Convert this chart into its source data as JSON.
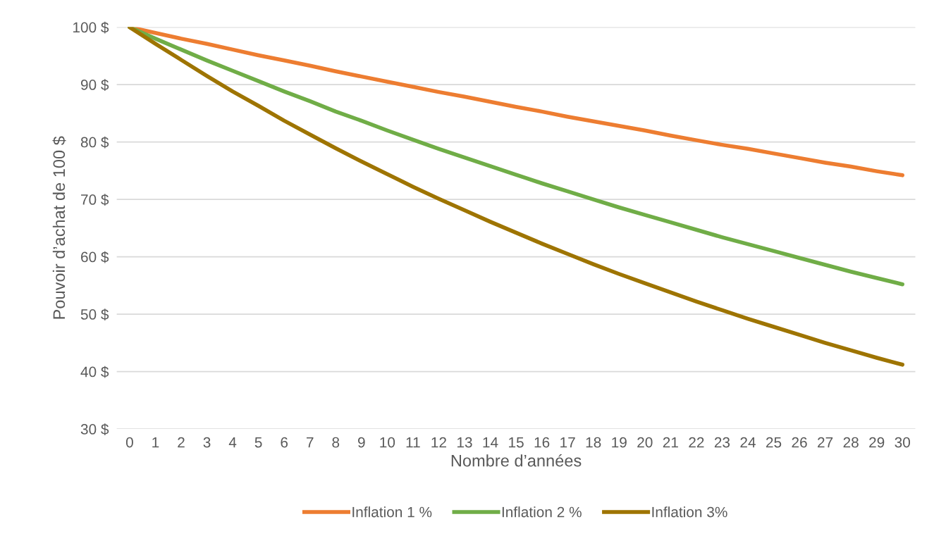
{
  "chart_data": {
    "type": "line",
    "xlabel": "Nombre d’années",
    "ylabel": "Pouvoir d’achat de 100 $",
    "categories": [
      "0",
      "1",
      "2",
      "3",
      "4",
      "5",
      "6",
      "7",
      "8",
      "9",
      "10",
      "11",
      "12",
      "13",
      "14",
      "15",
      "16",
      "17",
      "18",
      "19",
      "20",
      "21",
      "22",
      "23",
      "24",
      "25",
      "26",
      "27",
      "28",
      "29",
      "30"
    ],
    "series": [
      {
        "name": "Inflation 1 %",
        "color": "#ed7d31",
        "values": [
          100,
          99.0,
          98.0,
          97.1,
          96.1,
          95.1,
          94.2,
          93.3,
          92.3,
          91.4,
          90.5,
          89.6,
          88.7,
          87.9,
          87.0,
          86.1,
          85.3,
          84.4,
          83.6,
          82.8,
          82.0,
          81.1,
          80.3,
          79.5,
          78.8,
          78.0,
          77.2,
          76.4,
          75.7,
          74.9,
          74.2
        ]
      },
      {
        "name": "Inflation 2 %",
        "color": "#70ad47",
        "values": [
          100,
          98.0,
          96.1,
          94.2,
          92.4,
          90.6,
          88.8,
          87.1,
          85.3,
          83.7,
          82.0,
          80.4,
          78.8,
          77.3,
          75.8,
          74.3,
          72.8,
          71.4,
          70.0,
          68.6,
          67.3,
          66.0,
          64.7,
          63.4,
          62.2,
          61.0,
          59.8,
          58.6,
          57.4,
          56.3,
          55.2
        ]
      },
      {
        "name": "Inflation 3%",
        "color": "#9e7400",
        "values": [
          100,
          97.1,
          94.3,
          91.5,
          88.8,
          86.3,
          83.7,
          81.3,
          78.9,
          76.6,
          74.4,
          72.2,
          70.1,
          68.1,
          66.1,
          64.2,
          62.3,
          60.5,
          58.7,
          57.0,
          55.4,
          53.8,
          52.2,
          50.7,
          49.2,
          47.8,
          46.4,
          45.0,
          43.7,
          42.4,
          41.2
        ]
      }
    ],
    "ylim": [
      30,
      100
    ],
    "yticks": [
      {
        "value": 30,
        "label": "30 $"
      },
      {
        "value": 40,
        "label": "40 $"
      },
      {
        "value": 50,
        "label": "50 $"
      },
      {
        "value": 60,
        "label": "60 $"
      },
      {
        "value": 70,
        "label": "70 $"
      },
      {
        "value": 80,
        "label": "80 $"
      },
      {
        "value": 90,
        "label": "90 $"
      },
      {
        "value": 100,
        "label": "100 $"
      }
    ],
    "grid": "y",
    "legend": "bottom",
    "marker": "none",
    "line_style": "solid"
  }
}
